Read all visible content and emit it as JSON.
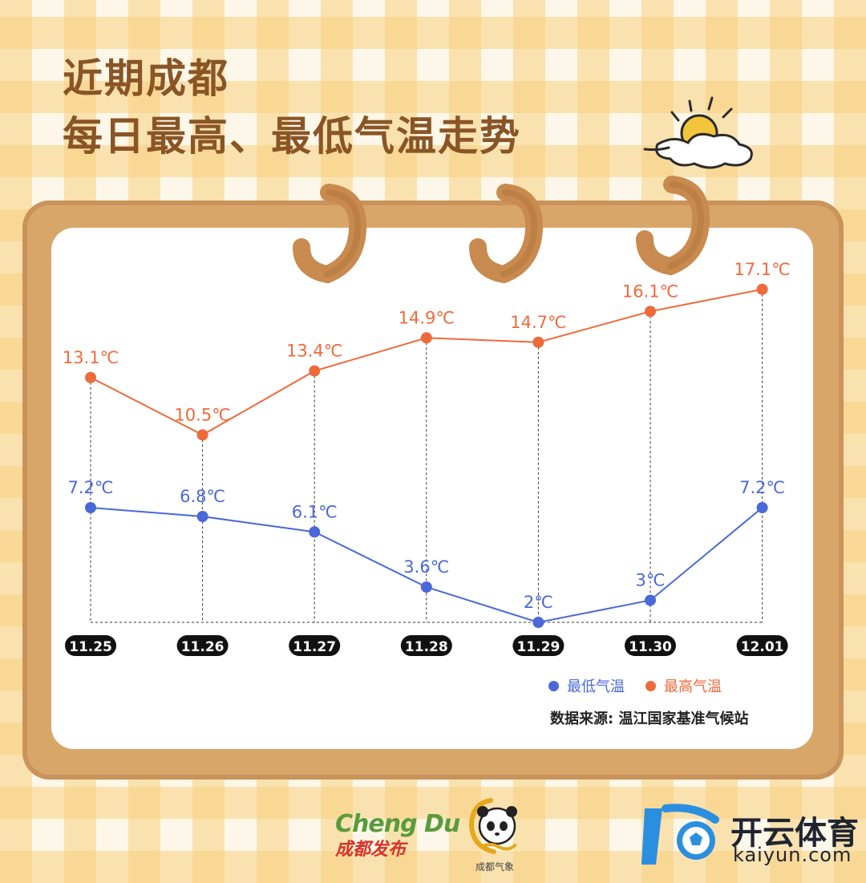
{
  "title": {
    "line1": "近期成都",
    "line2": "每日最高、最低气温走势"
  },
  "chart_data": {
    "type": "line",
    "categories": [
      "11.25",
      "11.26",
      "11.27",
      "11.28",
      "11.29",
      "11.30",
      "12.01"
    ],
    "series": [
      {
        "name": "最高气温",
        "color": "#ef6a3b",
        "values": [
          13.1,
          10.5,
          13.4,
          14.9,
          14.7,
          16.1,
          17.1
        ],
        "labels": [
          "13.1℃",
          "10.5℃",
          "13.4℃",
          "14.9℃",
          "14.7℃",
          "16.1℃",
          "17.1℃"
        ]
      },
      {
        "name": "最低气温",
        "color": "#4a68d8",
        "values": [
          7.2,
          6.8,
          6.1,
          3.6,
          2,
          3,
          7.2
        ],
        "labels": [
          "7.2℃",
          "6.8℃",
          "6.1℃",
          "3.6℃",
          "2℃",
          "3℃",
          "7.2℃"
        ]
      }
    ],
    "grid": false,
    "drop_lines": true,
    "legend_position": "bottom-right"
  },
  "legend": {
    "low_label": "最低气温",
    "high_label": "最高气温",
    "low_color": "#4a68d8",
    "high_color": "#ef6a3b"
  },
  "source": "数据来源: 温江国家基准气候站",
  "logos": {
    "chengdu_en": "Cheng Du",
    "chengdu_cn": "成都发布",
    "weather_cn": "成都气象",
    "kaiyun_cn": "开云体育",
    "kaiyun_en": "kaiyun.com"
  }
}
